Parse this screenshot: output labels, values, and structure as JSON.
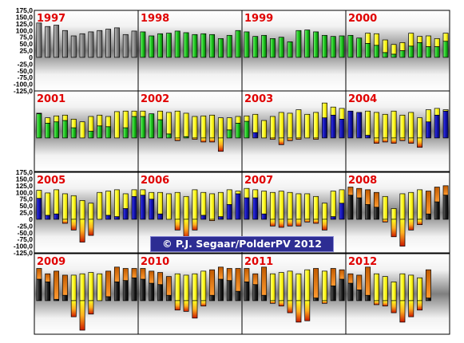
{
  "credit": "© P.J. Segaar/PolderPV 2012",
  "colors": {
    "panel_edge": "#ffffff",
    "panel_center": "#7a7a7a",
    "year_label": "#e00000",
    "credit_bg": "#2d2d93",
    "grey_bar": "#8e8e8e",
    "green": "#1fc81f",
    "yellow": "#ffff33",
    "blue": "#1414b4",
    "orange": "#ff8a14",
    "red": "#cc1a00"
  },
  "chart_data": {
    "type": "bar",
    "title": "",
    "ylim": [
      -125,
      175
    ],
    "y_ticks": [
      "175,0",
      "150,0",
      "125,0",
      "100,0",
      "75,0",
      "50,0",
      "25,0",
      "0",
      "-25,0",
      "-50,0",
      "-75,0",
      "-100,0",
      "-125,0"
    ],
    "grid_columns": 4,
    "panels": [
      {
        "year": "1997",
        "colors": [
          "grey",
          "grey",
          "grey",
          "grey",
          "grey",
          "grey",
          "grey",
          "grey",
          "grey",
          "grey",
          "grey",
          "grey"
        ],
        "base": [
          128,
          115,
          120,
          100,
          80,
          88,
          95,
          100,
          105,
          110,
          85,
          98
        ],
        "top": [
          128,
          115,
          120,
          100,
          80,
          88,
          95,
          100,
          105,
          110,
          85,
          98
        ]
      },
      {
        "year": "1998",
        "colors": [
          "green",
          "green",
          "green",
          "green",
          "green",
          "green",
          "green",
          "green",
          "green",
          "green",
          "green",
          "green"
        ],
        "base": [
          95,
          80,
          88,
          90,
          98,
          92,
          85,
          88,
          85,
          70,
          82,
          100
        ],
        "top": [
          95,
          80,
          88,
          90,
          98,
          92,
          85,
          88,
          85,
          70,
          82,
          100
        ]
      },
      {
        "year": "1999",
        "colors": [
          "green",
          "green",
          "green",
          "green",
          "green",
          "green",
          "green",
          "green",
          "green",
          "green",
          "green",
          "green"
        ],
        "base": [
          95,
          78,
          82,
          70,
          75,
          58,
          100,
          102,
          95,
          82,
          78,
          80
        ],
        "top": [
          95,
          78,
          82,
          70,
          75,
          58,
          100,
          102,
          95,
          82,
          78,
          80
        ]
      },
      {
        "year": "2000",
        "colors": [
          "green",
          "green",
          "green",
          "green",
          "green",
          "green",
          "green",
          "green",
          "green",
          "green",
          "green",
          "green"
        ],
        "base": [
          82,
          72,
          52,
          45,
          18,
          12,
          25,
          42,
          55,
          40,
          40,
          60
        ],
        "top": [
          82,
          72,
          90,
          88,
          65,
          48,
          55,
          90,
          78,
          80,
          70,
          90
        ]
      },
      {
        "year": "2001",
        "colors": [
          "green",
          "green",
          "green",
          "green",
          "green",
          "green",
          "green",
          "green",
          "green",
          "green",
          "green",
          "green"
        ],
        "base": [
          90,
          55,
          60,
          65,
          38,
          0,
          25,
          45,
          42,
          0,
          38,
          80
        ],
        "top": [
          92,
          75,
          82,
          85,
          70,
          60,
          80,
          85,
          80,
          98,
          100,
          100
        ]
      },
      {
        "year": "2002",
        "colors": [
          "green",
          "green",
          "green",
          "green",
          "green",
          "green",
          "green",
          "green",
          "green",
          "green",
          "green",
          "green"
        ],
        "base": [
          80,
          90,
          68,
          15,
          -10,
          5,
          -5,
          -15,
          -15,
          -50,
          30,
          55
        ],
        "top": [
          100,
          90,
          100,
          95,
          100,
          92,
          80,
          82,
          85,
          75,
          75,
          80
        ]
      },
      {
        "year": "2003",
        "colors": [
          "green",
          "blue",
          "blue",
          "blue",
          "blue",
          "blue",
          "blue",
          "blue",
          "blue",
          "blue",
          "blue",
          "blue"
        ],
        "base": [
          62,
          20,
          0,
          -5,
          -25,
          -10,
          -5,
          0,
          -5,
          75,
          85,
          70
        ],
        "top": [
          82,
          88,
          65,
          80,
          95,
          92,
          105,
          88,
          95,
          130,
          115,
          110
        ]
      },
      {
        "year": "2004",
        "colors": [
          "blue",
          "blue",
          "blue",
          "blue",
          "blue",
          "blue",
          "blue",
          "blue",
          "blue",
          "blue",
          "blue",
          "blue"
        ],
        "base": [
          100,
          95,
          10,
          -20,
          -15,
          -20,
          -10,
          -20,
          -35,
          60,
          85,
          100
        ],
        "top": [
          100,
          95,
          100,
          95,
          88,
          100,
          85,
          95,
          75,
          105,
          110,
          105
        ]
      },
      {
        "year": "2005",
        "colors": [
          "blue",
          "blue",
          "blue",
          "blue",
          "blue",
          "blue",
          "blue",
          "blue",
          "blue",
          "blue",
          "blue",
          "blue"
        ],
        "base": [
          78,
          15,
          20,
          -15,
          -40,
          -85,
          -60,
          0,
          15,
          10,
          40,
          85
        ],
        "top": [
          108,
          98,
          110,
          95,
          88,
          70,
          60,
          100,
          105,
          110,
          95,
          110
        ]
      },
      {
        "year": "2006",
        "colors": [
          "blue",
          "blue",
          "blue",
          "blue",
          "blue",
          "blue",
          "blue",
          "blue",
          "blue",
          "blue",
          "blue",
          "blue"
        ],
        "base": [
          90,
          75,
          20,
          0,
          -40,
          -70,
          -40,
          15,
          -5,
          10,
          55,
          95
        ],
        "top": [
          110,
          100,
          100,
          95,
          100,
          85,
          110,
          100,
          95,
          100,
          110,
          105
        ]
      },
      {
        "year": "2007",
        "colors": [
          "blue",
          "blue",
          "blue",
          "blue",
          "blue",
          "blue",
          "blue",
          "blue",
          "blue",
          "blue",
          "blue",
          "blue"
        ],
        "base": [
          80,
          80,
          20,
          -25,
          -30,
          -25,
          -25,
          -10,
          -15,
          -40,
          10,
          60
        ],
        "top": [
          115,
          110,
          105,
          100,
          105,
          100,
          95,
          95,
          85,
          60,
          105,
          110
        ]
      },
      {
        "year": "2008",
        "colors": [
          "black",
          "black",
          "black",
          "black",
          "black",
          "black",
          "black",
          "black",
          "black",
          "black",
          "black",
          "black"
        ],
        "base": [
          90,
          80,
          55,
          45,
          -10,
          -65,
          -100,
          -40,
          -20,
          20,
          65,
          90
        ],
        "top": [
          120,
          115,
          110,
          100,
          85,
          40,
          95,
          100,
          110,
          105,
          120,
          125
        ]
      },
      {
        "year": "2009",
        "colors": [
          "black",
          "black",
          "black",
          "black",
          "black",
          "black",
          "black",
          "black",
          "black",
          "black",
          "black",
          "black"
        ],
        "base": [
          80,
          70,
          5,
          20,
          -60,
          -110,
          -50,
          0,
          15,
          70,
          75,
          85
        ],
        "top": [
          120,
          100,
          110,
          95,
          95,
          100,
          105,
          100,
          110,
          125,
          120,
          120
        ]
      },
      {
        "year": "2010",
        "colors": [
          "black",
          "black",
          "black",
          "black",
          "black",
          "black",
          "black",
          "black",
          "black",
          "black",
          "black",
          "black"
        ],
        "base": [
          80,
          65,
          60,
          20,
          -35,
          -40,
          -65,
          -20,
          20,
          80,
          75,
          35
        ],
        "top": [
          120,
          110,
          105,
          90,
          100,
          95,
          100,
          110,
          115,
          125,
          120,
          120
        ]
      },
      {
        "year": "2011",
        "colors": [
          "black",
          "black",
          "black",
          "black",
          "black",
          "black",
          "black",
          "black",
          "black",
          "black",
          "black",
          "black"
        ],
        "base": [
          70,
          60,
          20,
          -10,
          -20,
          -45,
          -80,
          -75,
          10,
          -10,
          55,
          80
        ],
        "top": [
          120,
          100,
          125,
          100,
          105,
          110,
          100,
          115,
          120,
          110,
          120,
          115
        ]
      },
      {
        "year": "2012",
        "colors": [
          "black",
          "black",
          "black",
          "black",
          "black",
          "black",
          "black",
          "black",
          "black",
          "black"
        ],
        "base": [
          65,
          40,
          20,
          -15,
          -20,
          -45,
          -80,
          -60,
          -35,
          10
        ],
        "top": [
          100,
          95,
          125,
          100,
          90,
          70,
          100,
          95,
          85,
          115
        ]
      }
    ]
  }
}
